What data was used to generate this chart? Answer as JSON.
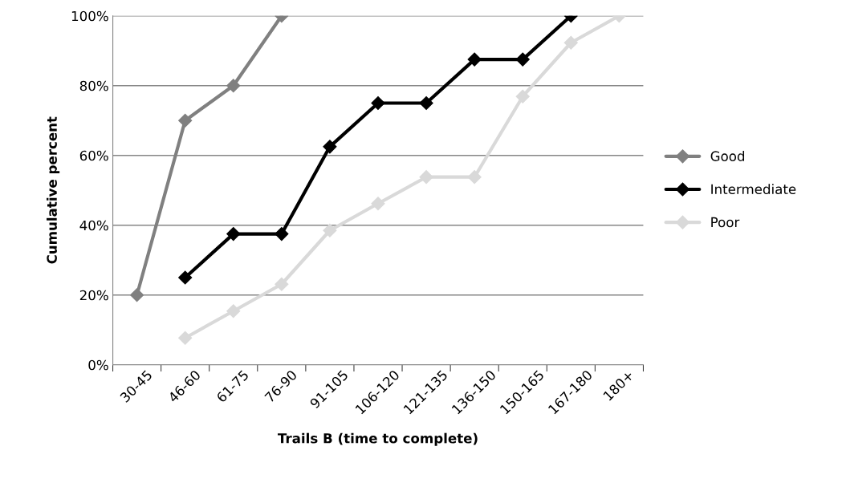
{
  "chart_data": {
    "type": "line",
    "xlabel": "Trails B (time to complete)",
    "ylabel": "Cumulative percent",
    "categories": [
      "30-45",
      "46-60",
      "61-75",
      "76-90",
      "91-105",
      "106-120",
      "121-135",
      "136-150",
      "150-165",
      "167-180",
      "180+"
    ],
    "series": [
      {
        "name": "Good",
        "color": "#808080",
        "values": [
          20,
          70,
          80,
          100,
          null,
          null,
          null,
          null,
          null,
          null,
          null
        ]
      },
      {
        "name": "Intermediate",
        "color": "#000000",
        "values": [
          null,
          25,
          37.5,
          37.5,
          62.5,
          75,
          75,
          87.5,
          87.5,
          100,
          null
        ]
      },
      {
        "name": "Poor",
        "color": "#d9d9d9",
        "values": [
          null,
          7.7,
          15.4,
          23.1,
          38.5,
          46.2,
          53.8,
          53.8,
          76.9,
          92.3,
          100
        ]
      }
    ],
    "ylim": [
      0,
      100
    ],
    "yticks": [
      {
        "value": 0,
        "label": "0%"
      },
      {
        "value": 20,
        "label": "20%"
      },
      {
        "value": 40,
        "label": "40%"
      },
      {
        "value": 60,
        "label": "60%"
      },
      {
        "value": 80,
        "label": "80%"
      },
      {
        "value": 100,
        "label": "100%"
      }
    ],
    "grid": "y",
    "legend": "right",
    "marker": "diamond",
    "line_style": "solid"
  }
}
